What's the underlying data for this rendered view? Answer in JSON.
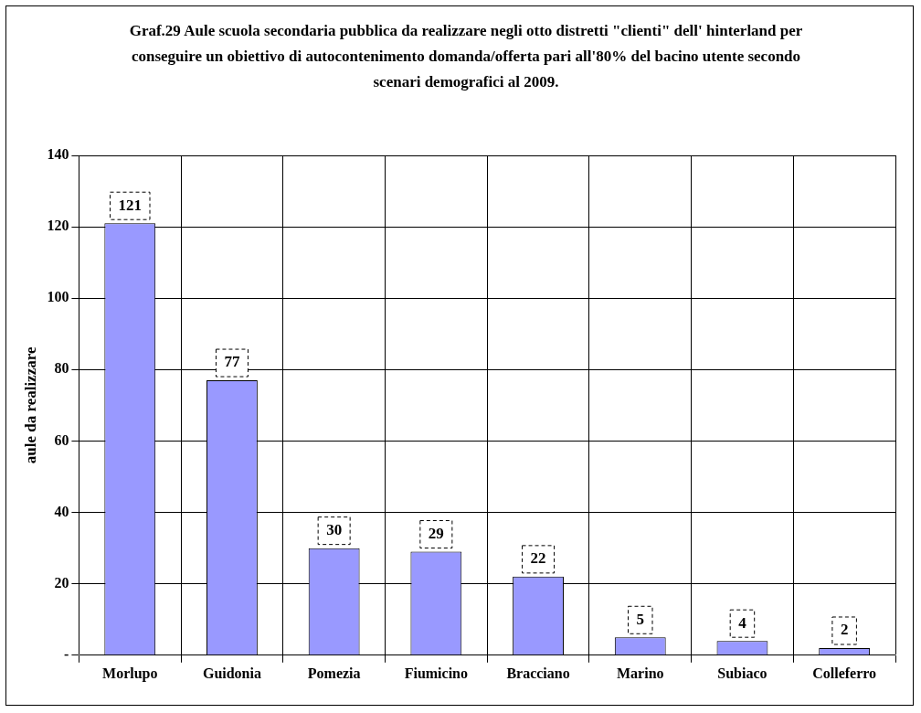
{
  "chart_data": {
    "type": "bar",
    "title": "Graf.29 Aule scuola secondaria pubblica da realizzare negli otto distretti \"clienti\" dell' hinterland per conseguire  un obiettivo di autocontenimento domanda/offerta pari all'80% del bacino utente secondo scenari demografici al 2009.",
    "ylabel": "aule da realizzare",
    "categories": [
      "Morlupo",
      "Guidonia",
      "Pomezia",
      "Fiumicino",
      "Bracciano",
      "Marino",
      "Subiaco",
      "Colleferro"
    ],
    "values": [
      121,
      77,
      30,
      29,
      22,
      5,
      4,
      2
    ],
    "color": "#9999ff",
    "ylim": [
      0,
      140
    ],
    "yticks": [
      {
        "value": 0,
        "label": "-"
      },
      20,
      40,
      60,
      80,
      100,
      120,
      140
    ],
    "grid": true,
    "legend": false,
    "data_labels": true
  }
}
